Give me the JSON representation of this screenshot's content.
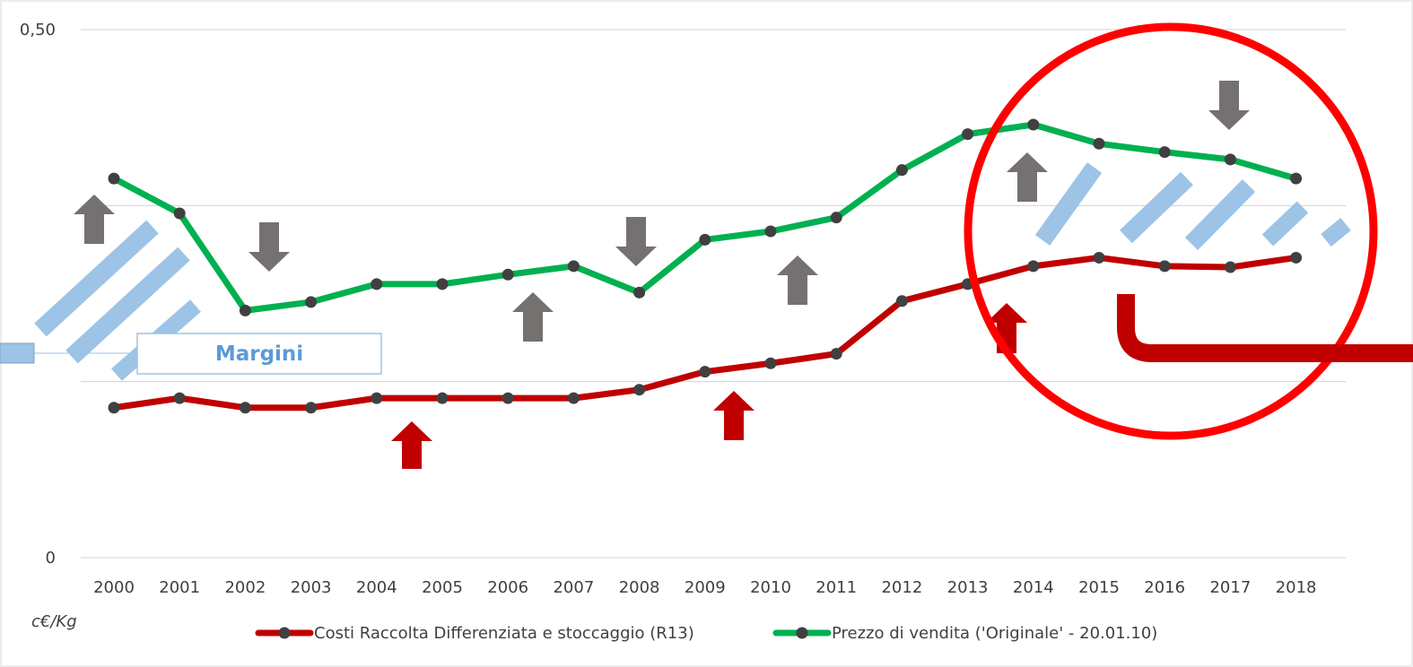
{
  "chart_data": {
    "type": "line",
    "title": "",
    "xlabel": "",
    "ylabel": "",
    "unit_label": "c€/Kg",
    "y_tick_labels": [
      "0",
      "0,50"
    ],
    "ylim": [
      0,
      0.5
    ],
    "grid": true,
    "legend_position": "bottom",
    "categories": [
      "2000",
      "2001",
      "2002",
      "2003",
      "2004",
      "2005",
      "2006",
      "2007",
      "2008",
      "2009",
      "2010",
      "2011",
      "2012",
      "2013",
      "2014",
      "2015",
      "2016",
      "2017",
      "2018"
    ],
    "series": [
      {
        "name": "Costi Raccolta Differenziata e stoccaggio (R13)",
        "color": "#c00000",
        "values": [
          0.142,
          0.151,
          0.142,
          0.142,
          0.151,
          0.151,
          0.151,
          0.151,
          0.159,
          0.176,
          0.184,
          0.193,
          0.243,
          0.259,
          0.276,
          0.284,
          0.276,
          0.275,
          0.284
        ]
      },
      {
        "name": "Prezzo di vendita ('Originale' - 20.01.10)",
        "color": "#00b050",
        "values": [
          0.359,
          0.326,
          0.234,
          0.242,
          0.259,
          0.259,
          0.268,
          0.276,
          0.251,
          0.301,
          0.309,
          0.322,
          0.367,
          0.401,
          0.41,
          0.392,
          0.384,
          0.377,
          0.359
        ]
      }
    ],
    "annotations": {
      "callout_text": "Margini",
      "up_arrow_color": "#c00000",
      "gray_arrow_color": "#767171",
      "hatch_color": "#9dc3e6",
      "circle_color": "#ff0000"
    }
  }
}
